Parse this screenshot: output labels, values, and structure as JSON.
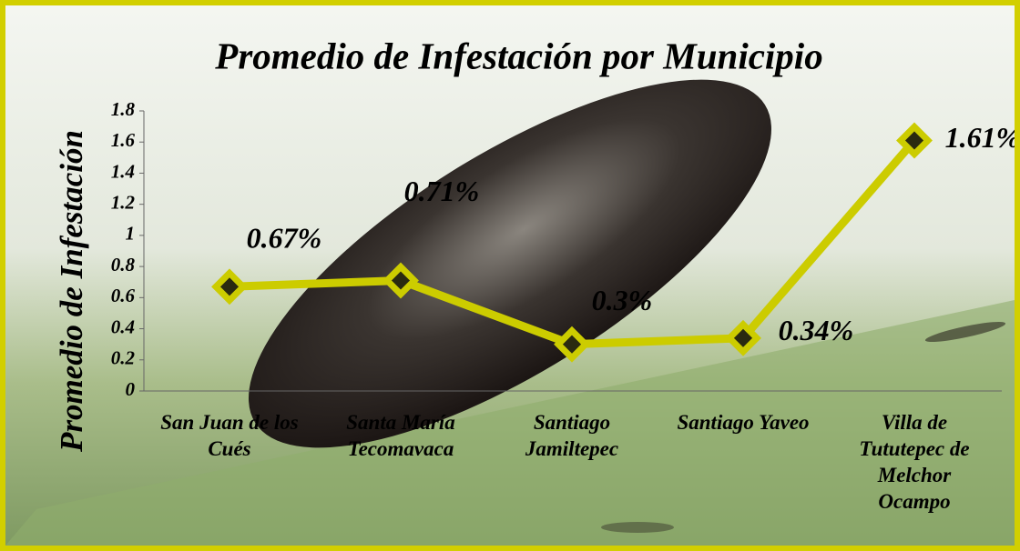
{
  "chart_data": {
    "type": "line",
    "title": "Promedio de Infestación por Municipio",
    "y_label": "Promedio de Infestación",
    "categories": [
      "San Juan de los Cués",
      "Santa María Tecomavaca",
      "Santiago Jamiltepec",
      "Santiago Yaveo",
      "Villa de Tututepec de Melchor Ocampo"
    ],
    "values": [
      0.67,
      0.71,
      0.3,
      0.34,
      1.61
    ],
    "value_labels": [
      "0.67%",
      "0.71%",
      "0.3%",
      "0.34%",
      "1.61%"
    ],
    "color": "#cccc00",
    "ylim": [
      0,
      1.8
    ],
    "yticks": [
      0,
      0.2,
      0.4,
      0.6,
      0.8,
      1,
      1.2,
      1.4,
      1.6,
      1.8
    ]
  }
}
